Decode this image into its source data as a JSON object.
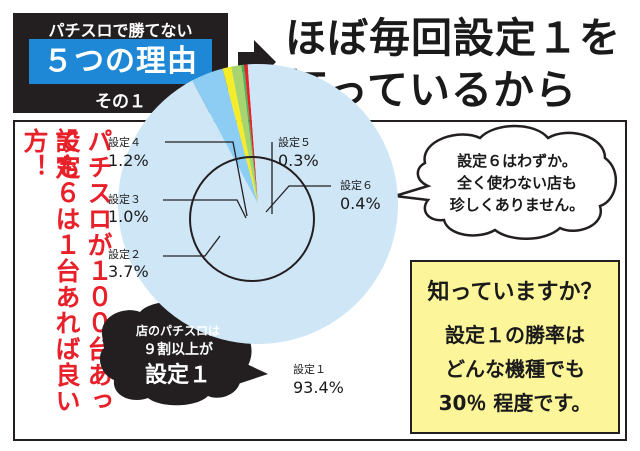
{
  "header": {
    "top": "パチスロで勝てない",
    "main": "５つの理由",
    "sub": "その１"
  },
  "headline": {
    "line1": "ほぼ毎回設定１を",
    "line2": "打っているから"
  },
  "left_vertical": {
    "column1": "パチスロが１００台あっても",
    "column2": "設定６は１台あれば良い方！"
  },
  "chart_data": {
    "type": "pie",
    "categories": [
      "設定１",
      "設定２",
      "設定３",
      "設定４",
      "設定５",
      "設定６"
    ],
    "values": [
      93.4,
      3.7,
      1.0,
      1.2,
      0.3,
      0.4
    ],
    "labels": {
      "s1_name": "設定１",
      "s1_value": "93.4%",
      "s2_name": "設定２",
      "s2_value": "3.7%",
      "s3_name": "設定３",
      "s3_value": "1.0%",
      "s4_name": "設定４",
      "s4_value": "1.2%",
      "s5_name": "設定５",
      "s5_value": "0.3%",
      "s6_name": "設定６",
      "s6_value": "0.4%"
    },
    "colors": [
      "#cfe6f7",
      "#8dcdf3",
      "#f5ec2a",
      "#a8d46f",
      "#4fb25a",
      "#e8202a"
    ]
  },
  "callout_right": {
    "line1": "設定６はわずか。",
    "line2": "全く使わない店も",
    "line3": "珍しくありません。"
  },
  "callout_dark": {
    "line1": "店のパチスロは",
    "line2": "９割以上が",
    "line3": "設定１"
  },
  "info_box": {
    "heading": "知っていますか？",
    "line1": "設定１の勝率は",
    "line2": "どんな機種でも",
    "line3": "30％ 程度です。"
  },
  "colors": {
    "accent_blue": "#1e88d6",
    "warning_red": "#e8202a",
    "note_yellow": "#fdf59a",
    "dark": "#231f20"
  }
}
